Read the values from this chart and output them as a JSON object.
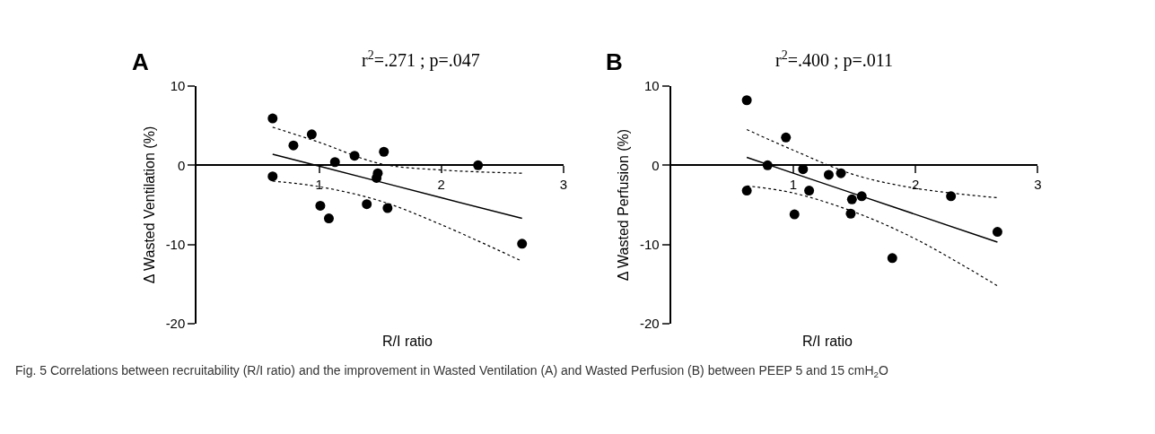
{
  "chart_data": [
    {
      "type": "scatter",
      "title": "A",
      "xlabel": "R/I ratio",
      "ylabel": "Δ Wasted Ventilation (%)",
      "annotations": [
        "r$^{2}$=.271 ; p=.047",
        "Fig. 5 Correlations between recruitability (R/I ratio) and the improvement in Wasted Ventilation (A) and Wasted Perfusion (B) between PEEP 5 and 15 cmH$_{2}$O"
      ],
      "xlim": [
        0,
        3
      ],
      "xticks": [
        1,
        2,
        3
      ],
      "ylim": [
        -20,
        10
      ],
      "yticks": [
        -20,
        -10,
        0,
        10
      ],
      "marker": "circle",
      "series": [
        {
          "color": "#000000",
          "x": [
            0.62,
            0.79,
            0.94,
            0.62,
            1.01,
            1.08,
            1.13,
            1.29,
            1.53,
            1.48,
            1.47,
            1.39,
            1.56,
            2.3,
            2.66
          ],
          "values": [
            5.9,
            2.5,
            3.9,
            -1.4,
            -5.1,
            -6.7,
            0.4,
            1.2,
            1.7,
            -1.0,
            -1.6,
            -4.9,
            -5.4,
            0,
            -9.9
          ]
        },
        {
          "type": "line",
          "marker": "none",
          "line_style": "solid",
          "color": "#000000",
          "x": [
            0.62,
            1.0,
            1.5,
            2.0,
            2.66
          ],
          "values": [
            1.4,
            -0.1,
            -2.1,
            -4.1,
            -6.7
          ]
        },
        {
          "type": "line",
          "marker": "none",
          "line_style": "dotted",
          "color": "#000000",
          "x": [
            0.62,
            1.0,
            1.5,
            2.0,
            2.66
          ],
          "values": [
            4.8,
            2.9,
            0.2,
            -0.6,
            -1.0
          ]
        },
        {
          "type": "line",
          "marker": "none",
          "line_style": "dotted",
          "color": "#000000",
          "x": [
            0.62,
            1.0,
            1.5,
            2.0,
            2.66
          ],
          "values": [
            -2.0,
            -2.7,
            -4.5,
            -7.5,
            -12.1
          ]
        }
      ]
    },
    {
      "type": "scatter",
      "title": "B",
      "xlabel": "R/I ratio",
      "ylabel": "Δ Wasted Perfusion (%)",
      "annotations": [
        "r$^{2}$=.400 ; p=.011"
      ],
      "xlim": [
        0,
        3
      ],
      "xticks": [
        1,
        2,
        3
      ],
      "ylim": [
        -20,
        10
      ],
      "yticks": [
        -20,
        -10,
        0,
        10
      ],
      "marker": "circle",
      "series": [
        {
          "color": "#000000",
          "x": [
            0.62,
            0.94,
            0.79,
            1.08,
            0.62,
            1.13,
            1.01,
            1.29,
            1.39,
            1.48,
            1.56,
            1.47,
            1.81,
            2.29,
            2.67
          ],
          "values": [
            8.2,
            3.5,
            0,
            -0.5,
            -3.2,
            -3.2,
            -6.2,
            -1.2,
            -1.0,
            -4.3,
            -3.9,
            -6.1,
            -11.7,
            -3.9,
            -8.4
          ]
        },
        {
          "type": "line",
          "marker": "none",
          "line_style": "solid",
          "color": "#000000",
          "x": [
            0.62,
            1.0,
            1.5,
            2.0,
            2.67
          ],
          "values": [
            1.0,
            -1.0,
            -3.6,
            -6.2,
            -9.7
          ]
        },
        {
          "type": "line",
          "marker": "none",
          "line_style": "dotted",
          "color": "#000000",
          "x": [
            0.62,
            1.0,
            1.5,
            2.0,
            2.67
          ],
          "values": [
            4.5,
            1.9,
            -1.2,
            -2.9,
            -4.1
          ]
        },
        {
          "type": "line",
          "marker": "none",
          "line_style": "dotted",
          "color": "#000000",
          "x": [
            0.62,
            1.0,
            1.5,
            2.0,
            2.67
          ],
          "values": [
            -2.6,
            -3.5,
            -5.9,
            -9.3,
            -15.2
          ]
        }
      ]
    }
  ]
}
